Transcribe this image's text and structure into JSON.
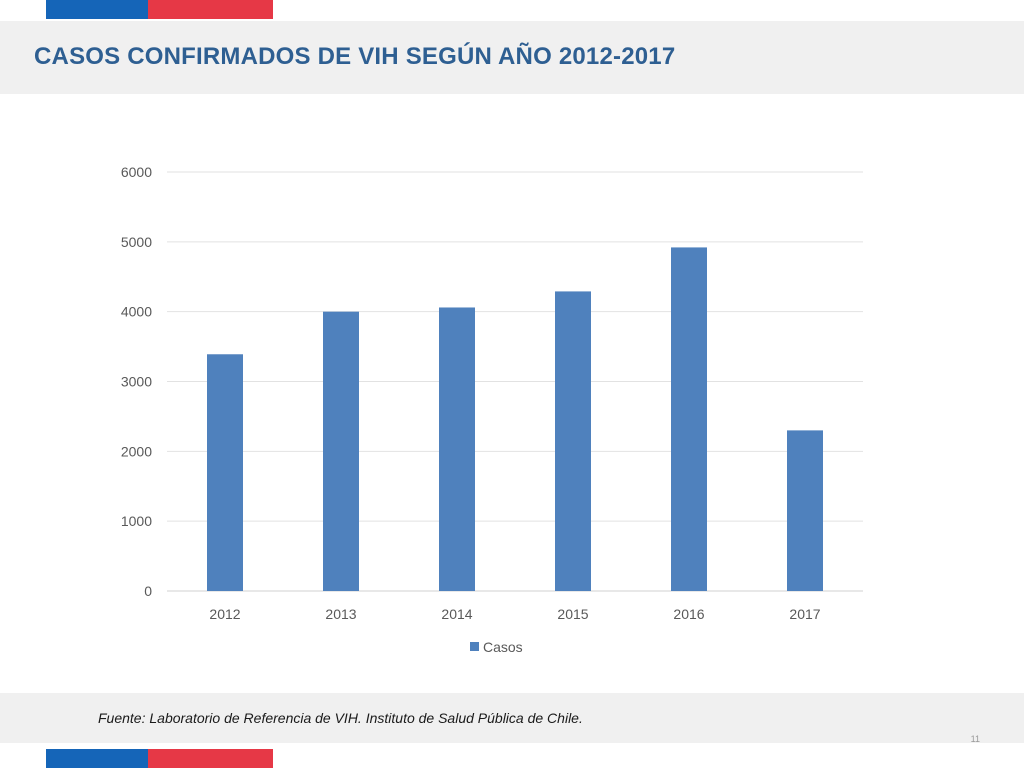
{
  "title": "CASOS CONFIRMADOS DE VIH SEGÚN AÑO 2012-2017",
  "footer": "Fuente: Laboratorio de Referencia de VIH. Instituto de Salud Pública de Chile.",
  "page_number": "11",
  "colors": {
    "flag_blue": "#1565b8",
    "flag_red": "#e63846",
    "title": "#2e5f92",
    "bar": "#4f81bd",
    "band": "#f0f0f0"
  },
  "chart_data": {
    "type": "bar",
    "categories": [
      "2012",
      "2013",
      "2014",
      "2015",
      "2016",
      "2017"
    ],
    "series": [
      {
        "name": "Casos",
        "values": [
          3390,
          4000,
          4060,
          4290,
          4920,
          2300
        ]
      }
    ],
    "ylim": [
      0,
      6000
    ],
    "yticks": [
      0,
      1000,
      2000,
      3000,
      4000,
      5000,
      6000
    ],
    "grid": true,
    "legend": "bottom",
    "xlabel": "",
    "ylabel": ""
  }
}
